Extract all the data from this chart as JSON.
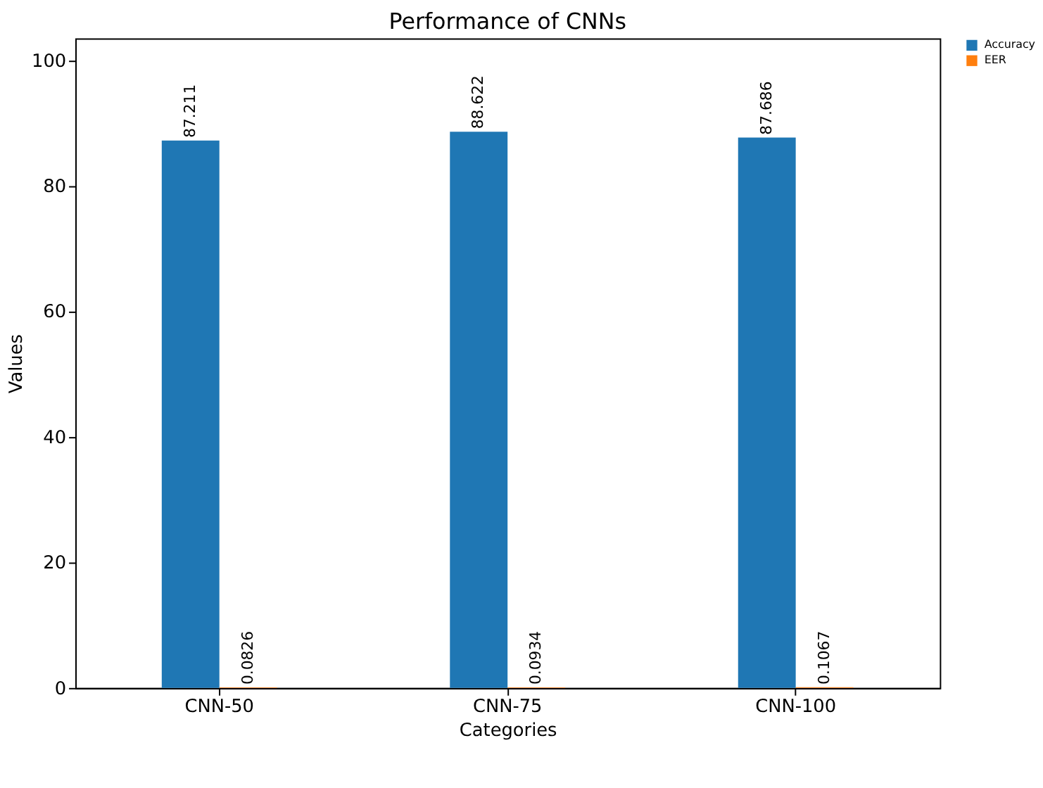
{
  "chart_data": {
    "type": "bar",
    "title": "Performance of CNNs",
    "xlabel": "Categories",
    "ylabel": "Values",
    "categories": [
      "CNN-50",
      "CNN-75",
      "CNN-100"
    ],
    "series": [
      {
        "name": "Accuracy",
        "color": "#1f77b4",
        "values": [
          87.211,
          88.622,
          87.686
        ]
      },
      {
        "name": "EER",
        "color": "#ff7f0e",
        "values": [
          0.0826,
          0.0934,
          0.1067
        ]
      }
    ],
    "ylim": [
      0,
      103.5
    ],
    "yticks": [
      0,
      20,
      40,
      60,
      80,
      100
    ],
    "grid": false,
    "legend": "right",
    "data_labels": true
  }
}
